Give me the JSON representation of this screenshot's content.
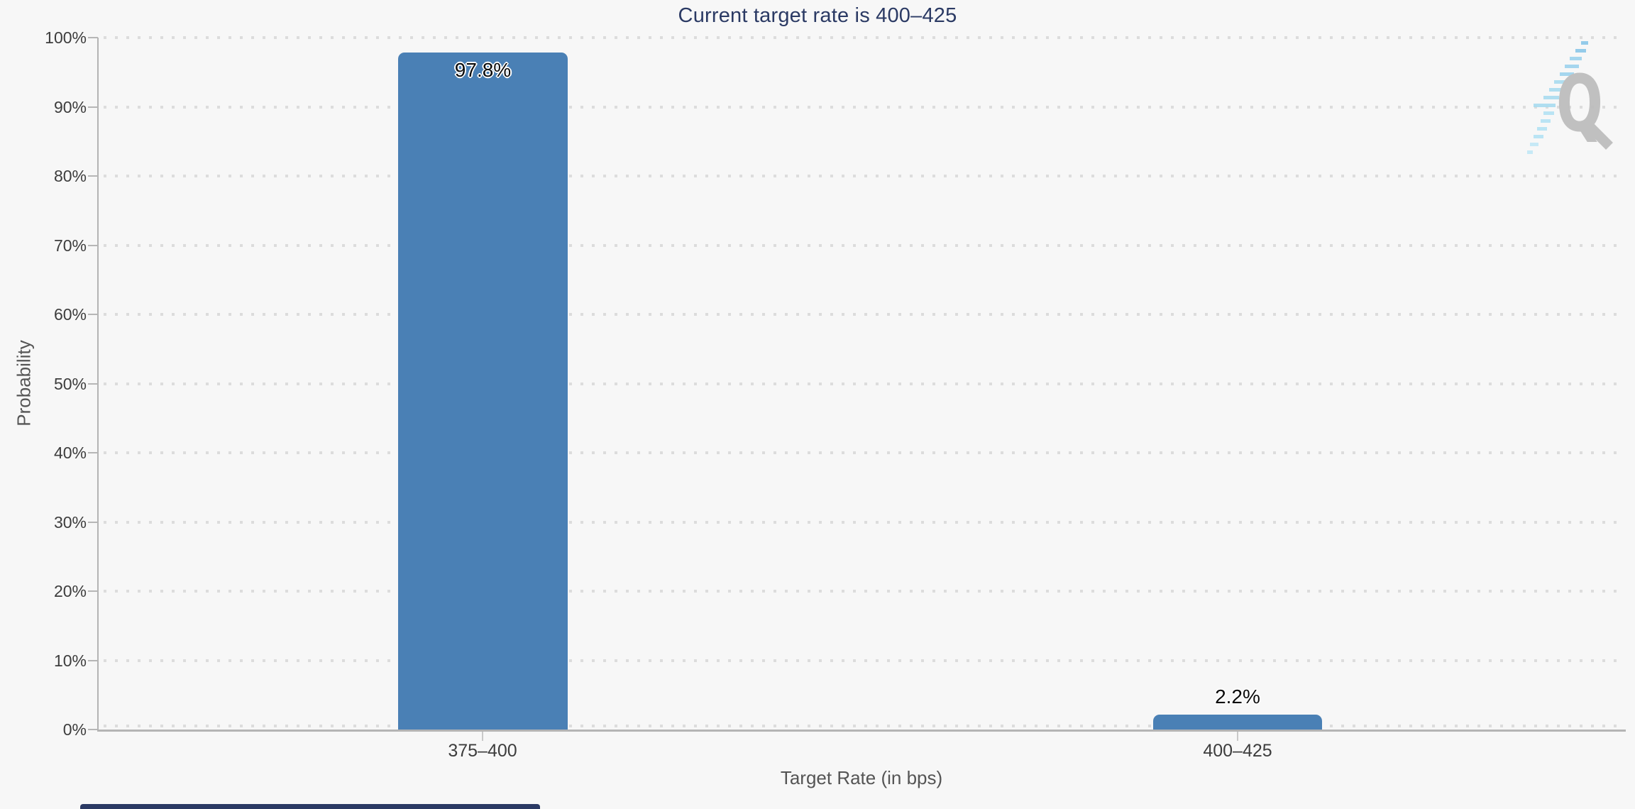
{
  "chart_data": {
    "type": "bar",
    "title": "Current target rate is 400–425",
    "categories": [
      "375–400",
      "400–425"
    ],
    "values": [
      97.8,
      2.2
    ],
    "bar_labels": [
      "97.8%",
      "2.2%"
    ],
    "xlabel": "Target Rate (in bps)",
    "ylabel": "Probability",
    "ylim": [
      0,
      100
    ],
    "ytick_step": 10,
    "ytick_labels": [
      "100%",
      "90%",
      "80%",
      "70%",
      "60%",
      "50%",
      "40%",
      "30%",
      "20%",
      "10%",
      "0%"
    ],
    "grid": "dotted-horizontal",
    "legend": "none",
    "bar_color": "#4a80b5",
    "title_color": "#2b3a64"
  },
  "watermark": {
    "letter": "Q",
    "letter_color": "#bcbcbc",
    "accent_color": "#9fd4ee"
  }
}
